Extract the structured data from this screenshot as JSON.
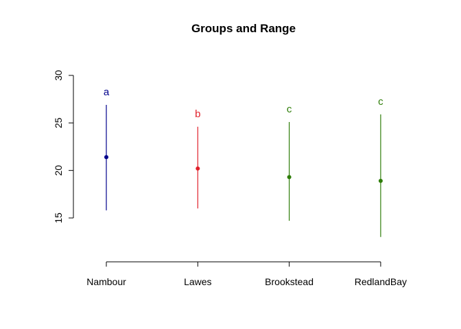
{
  "chart_data": {
    "type": "scatter",
    "title": "Groups and Range",
    "xlabel": "",
    "ylabel": "",
    "categories": [
      "Nambour",
      "Lawes",
      "Brookstead",
      "RedlandBay"
    ],
    "y_ticks": [
      15,
      20,
      25,
      30
    ],
    "ylim": [
      10.5,
      31.5
    ],
    "grid": false,
    "legend": "none",
    "points": [
      {
        "category": "Nambour",
        "value": 21.4,
        "low": 15.8,
        "high": 26.9,
        "letter": "a",
        "color": "#00008b"
      },
      {
        "category": "Lawes",
        "value": 20.2,
        "low": 16.0,
        "high": 24.6,
        "letter": "b",
        "color": "#e0202a"
      },
      {
        "category": "Brookstead",
        "value": 19.3,
        "low": 14.7,
        "high": 25.1,
        "letter": "c",
        "color": "#2e7d08"
      },
      {
        "category": "RedlandBay",
        "value": 18.9,
        "low": 13.0,
        "high": 25.9,
        "letter": "c",
        "color": "#2e7d08"
      }
    ]
  }
}
